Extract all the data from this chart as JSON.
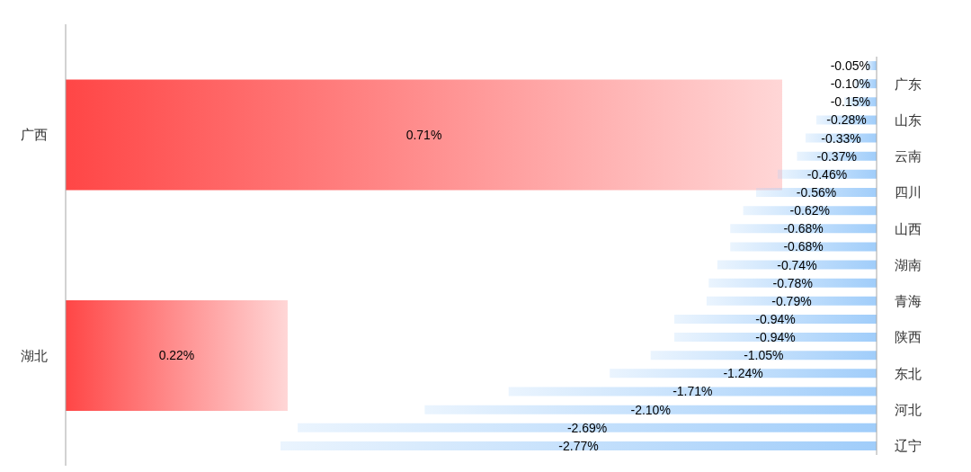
{
  "chart_data": [
    {
      "type": "bar",
      "orientation": "horizontal",
      "categories": [
        "广西",
        "湖北"
      ],
      "values": [
        0.71,
        0.22
      ],
      "value_labels": [
        "0.71%",
        "0.22%"
      ],
      "color": "#ff4646",
      "tick_labels": "y"
    },
    {
      "type": "bar",
      "orientation": "horizontal",
      "categories": [
        null,
        "广东",
        null,
        "山东",
        null,
        "云南",
        null,
        "四川",
        null,
        "山西",
        null,
        "湖南",
        null,
        "青海",
        null,
        "陕西",
        null,
        "东北",
        null,
        "河北",
        null,
        "辽宁"
      ],
      "values": [
        -0.05,
        -0.1,
        -0.15,
        -0.28,
        -0.33,
        -0.37,
        -0.46,
        -0.56,
        -0.62,
        -0.68,
        -0.68,
        -0.74,
        -0.78,
        -0.79,
        -0.94,
        -0.94,
        -1.05,
        -1.24,
        -1.71,
        -2.1,
        -2.69,
        -2.77
      ],
      "value_labels": [
        "-0.05%",
        "-0.10%",
        "-0.15%",
        "-0.28%",
        "-0.33%",
        "-0.37%",
        "-0.46%",
        "-0.56%",
        "-0.62%",
        "-0.68%",
        "-0.68%",
        "-0.74%",
        "-0.78%",
        "-0.79%",
        "-0.94%",
        "-0.94%",
        "-1.05%",
        "-1.24%",
        "-1.71%",
        "-2.10%",
        "-2.69%",
        "-2.77%"
      ],
      "color": "#a0cdfa",
      "tick_labels": "y"
    }
  ]
}
